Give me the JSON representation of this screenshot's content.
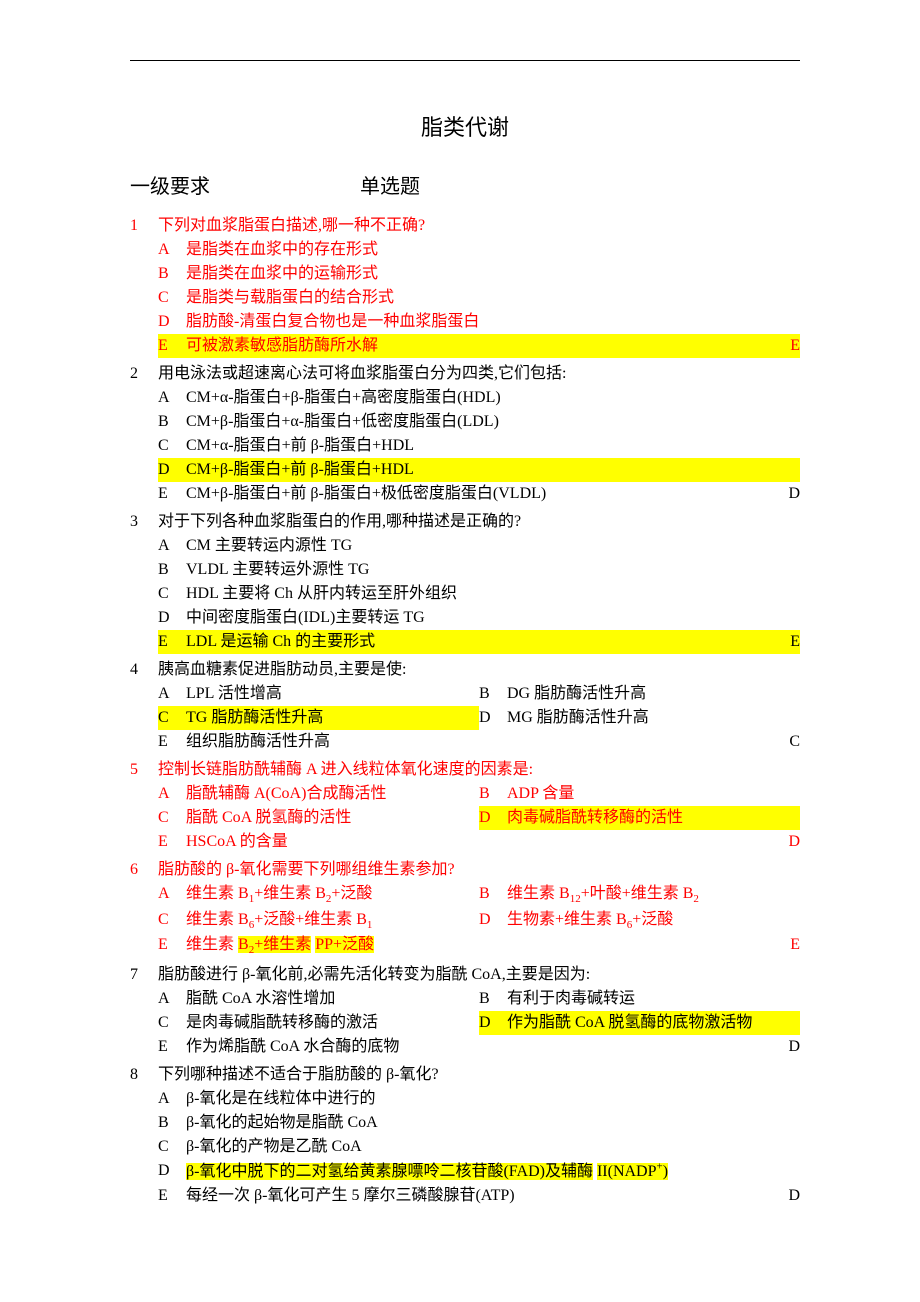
{
  "title": "脂类代谢",
  "section_left": "一级要求",
  "section_right": "单选题",
  "questions": [
    {
      "num": "1",
      "red": true,
      "text": "下列对血浆脂蛋白描述,哪一种不正确?",
      "layout": "single",
      "options": [
        {
          "letter": "A",
          "text": "是脂类在血浆中的存在形式"
        },
        {
          "letter": "B",
          "text": "是脂类在血浆中的运输形式"
        },
        {
          "letter": "C",
          "text": "是脂类与载脂蛋白的结合形式"
        },
        {
          "letter": "D",
          "text": "脂肪酸-清蛋白复合物也是一种血浆脂蛋白"
        },
        {
          "letter": "E",
          "text": "可被激素敏感脂肪酶所水解",
          "highlight": true
        }
      ],
      "answer": "E",
      "answer_red": true
    },
    {
      "num": "2",
      "text": "用电泳法或超速离心法可将血浆脂蛋白分为四类,它们包括:",
      "layout": "single",
      "options": [
        {
          "letter": "A",
          "text": "CM+α-脂蛋白+β-脂蛋白+高密度脂蛋白(HDL)"
        },
        {
          "letter": "B",
          "text": "CM+β-脂蛋白+α-脂蛋白+低密度脂蛋白(LDL)"
        },
        {
          "letter": "C",
          "text": "CM+α-脂蛋白+前 β-脂蛋白+HDL"
        },
        {
          "letter": "D",
          "text": "CM+β-脂蛋白+前 β-脂蛋白+HDL",
          "highlight": true
        },
        {
          "letter": "E",
          "text": "CM+β-脂蛋白+前 β-脂蛋白+极低密度脂蛋白(VLDL)"
        }
      ],
      "answer": "D"
    },
    {
      "num": "3",
      "text": "对于下列各种血浆脂蛋白的作用,哪种描述是正确的?",
      "layout": "single",
      "options": [
        {
          "letter": "A",
          "text": "CM 主要转运内源性 TG"
        },
        {
          "letter": "B",
          "text": "VLDL 主要转运外源性 TG"
        },
        {
          "letter": "C",
          "text": "HDL 主要将 Ch 从肝内转运至肝外组织"
        },
        {
          "letter": "D",
          "text": "中间密度脂蛋白(IDL)主要转运 TG"
        },
        {
          "letter": "E",
          "text": "LDL 是运输 Ch 的主要形式",
          "highlight": true
        }
      ],
      "answer": "E"
    },
    {
      "num": "4",
      "text": "胰高血糖素促进脂肪动员,主要是使:",
      "layout": "two-col-e",
      "options": [
        {
          "letter": "A",
          "text": "LPL 活性增高"
        },
        {
          "letter": "B",
          "text": "DG 脂肪酶活性升高"
        },
        {
          "letter": "C",
          "text": "TG 脂肪酶活性升高",
          "highlight": true
        },
        {
          "letter": "D",
          "text": "MG 脂肪酶活性升高"
        },
        {
          "letter": "E",
          "text": "组织脂肪酶活性升高"
        }
      ],
      "answer": "C"
    },
    {
      "num": "5",
      "red": true,
      "text": "控制长链脂肪酰辅酶 A 进入线粒体氧化速度的因素是:",
      "layout": "two-col-e",
      "options": [
        {
          "letter": "A",
          "text": "脂酰辅酶 A(CoA)合成酶活性"
        },
        {
          "letter": "B",
          "text": "ADP 含量"
        },
        {
          "letter": "C",
          "text": "脂酰 CoA 脱氢酶的活性"
        },
        {
          "letter": "D",
          "text": "肉毒碱脂酰转移酶的活性",
          "highlight": true
        },
        {
          "letter": "E",
          "text": "HSCoA 的含量"
        }
      ],
      "answer": "D",
      "answer_red": true
    },
    {
      "num": "6",
      "red": true,
      "text": "脂肪酸的 β-氧化需要下列哪组维生素参加?",
      "layout": "two-col-e",
      "options": [
        {
          "letter": "A",
          "html": "维生素 B<sub>1</sub>+维生素 B<sub>2</sub>+泛酸"
        },
        {
          "letter": "B",
          "html": "维生素 B<sub>12</sub>+叶酸+维生素 B<sub>2</sub>"
        },
        {
          "letter": "C",
          "html": "维生素 B<sub>6</sub>+泛酸+维生素 B<sub>1</sub>"
        },
        {
          "letter": "D",
          "html": "生物素+维生素 B<sub>6</sub>+泛酸"
        },
        {
          "letter": "E",
          "html": "维生素 <span class=\"hl\">B<sub>2</sub>+维生素</span> <span class=\"hl\">PP+泛酸</span>"
        }
      ],
      "answer": "E",
      "answer_red": true
    },
    {
      "num": "7",
      "text": "脂肪酸进行 β-氧化前,必需先活化转变为脂酰 CoA,主要是因为:",
      "layout": "two-col-e",
      "options": [
        {
          "letter": "A",
          "text": "脂酰 CoA 水溶性增加"
        },
        {
          "letter": "B",
          "text": "有利于肉毒碱转运"
        },
        {
          "letter": "C",
          "text": "是肉毒碱脂酰转移酶的激活"
        },
        {
          "letter": "D",
          "text": "作为脂酰 CoA 脱氢酶的底物激活物",
          "highlight": true
        },
        {
          "letter": "E",
          "text": "作为烯脂酰 CoA 水合酶的底物"
        }
      ],
      "answer": "D"
    },
    {
      "num": "8",
      "text": "下列哪种描述不适合于脂肪酸的 β-氧化?",
      "layout": "single",
      "options": [
        {
          "letter": "A",
          "text": "β-氧化是在线粒体中进行的"
        },
        {
          "letter": "B",
          "text": "β-氧化的起始物是脂酰 CoA"
        },
        {
          "letter": "C",
          "text": "β-氧化的产物是乙酰 CoA"
        },
        {
          "letter": "D",
          "html": "<span class=\"hl\">β-氧化中脱下的二对氢给黄素腺嘌呤二核苷酸(FAD)及辅酶</span> <span class=\"hl\">II(NADP<sup>+</sup>)</span>"
        },
        {
          "letter": "E",
          "text": "每经一次 β-氧化可产生 5 摩尔三磷酸腺苷(ATP)"
        }
      ],
      "answer": "D"
    }
  ]
}
